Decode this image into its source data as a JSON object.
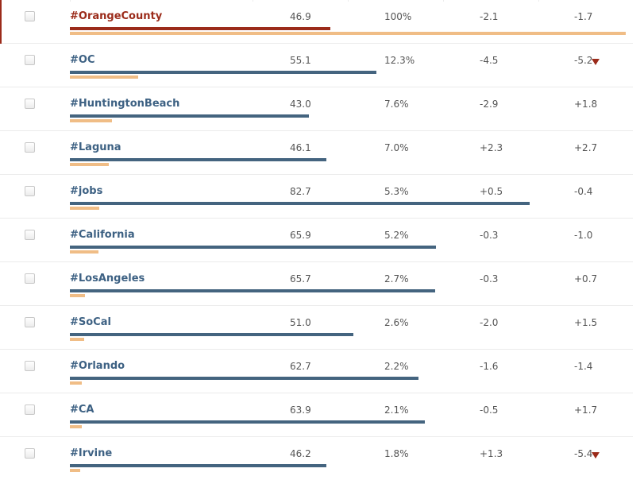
{
  "table": {
    "rows": [
      {
        "tag": "#OrangeCounty",
        "score": "46.9",
        "share": "100%",
        "d1": "-2.1",
        "d2": "-1.7",
        "score_value": 46.9,
        "share_value": 100,
        "active": true,
        "trend_down": false
      },
      {
        "tag": "#OC",
        "score": "55.1",
        "share": "12.3%",
        "d1": "-4.5",
        "d2": "-5.2",
        "score_value": 55.1,
        "share_value": 12.3,
        "active": false,
        "trend_down": true
      },
      {
        "tag": "#HuntingtonBeach",
        "score": "43.0",
        "share": "7.6%",
        "d1": "-2.9",
        "d2": "+1.8",
        "score_value": 43.0,
        "share_value": 7.6,
        "active": false,
        "trend_down": false
      },
      {
        "tag": "#Laguna",
        "score": "46.1",
        "share": "7.0%",
        "d1": "+2.3",
        "d2": "+2.7",
        "score_value": 46.1,
        "share_value": 7.0,
        "active": false,
        "trend_down": false
      },
      {
        "tag": "#jobs",
        "score": "82.7",
        "share": "5.3%",
        "d1": "+0.5",
        "d2": "-0.4",
        "score_value": 82.7,
        "share_value": 5.3,
        "active": false,
        "trend_down": false
      },
      {
        "tag": "#California",
        "score": "65.9",
        "share": "5.2%",
        "d1": "-0.3",
        "d2": "-1.0",
        "score_value": 65.9,
        "share_value": 5.2,
        "active": false,
        "trend_down": false
      },
      {
        "tag": "#LosAngeles",
        "score": "65.7",
        "share": "2.7%",
        "d1": "-0.3",
        "d2": "+0.7",
        "score_value": 65.7,
        "share_value": 2.7,
        "active": false,
        "trend_down": false
      },
      {
        "tag": "#SoCal",
        "score": "51.0",
        "share": "2.6%",
        "d1": "-2.0",
        "d2": "+1.5",
        "score_value": 51.0,
        "share_value": 2.6,
        "active": false,
        "trend_down": false
      },
      {
        "tag": "#Orlando",
        "score": "62.7",
        "share": "2.2%",
        "d1": "-1.6",
        "d2": "-1.4",
        "score_value": 62.7,
        "share_value": 2.2,
        "active": false,
        "trend_down": false
      },
      {
        "tag": "#CA",
        "score": "63.9",
        "share": "2.1%",
        "d1": "-0.5",
        "d2": "+1.7",
        "score_value": 63.9,
        "share_value": 2.1,
        "active": false,
        "trend_down": false
      },
      {
        "tag": "#Irvine",
        "score": "46.2",
        "share": "1.8%",
        "d1": "+1.3",
        "d2": "-5.4",
        "score_value": 46.2,
        "share_value": 1.8,
        "active": false,
        "trend_down": true
      }
    ]
  },
  "colors": {
    "active_accent": "#9b2b1a",
    "link": "#3d6183",
    "score_bar": "#44647f",
    "share_bar": "#f0bd86",
    "trend_down_arrow": "#9b2b1a"
  },
  "icons": {
    "checkbox": "checkbox-icon",
    "trend_down": "triangle-down-icon"
  }
}
